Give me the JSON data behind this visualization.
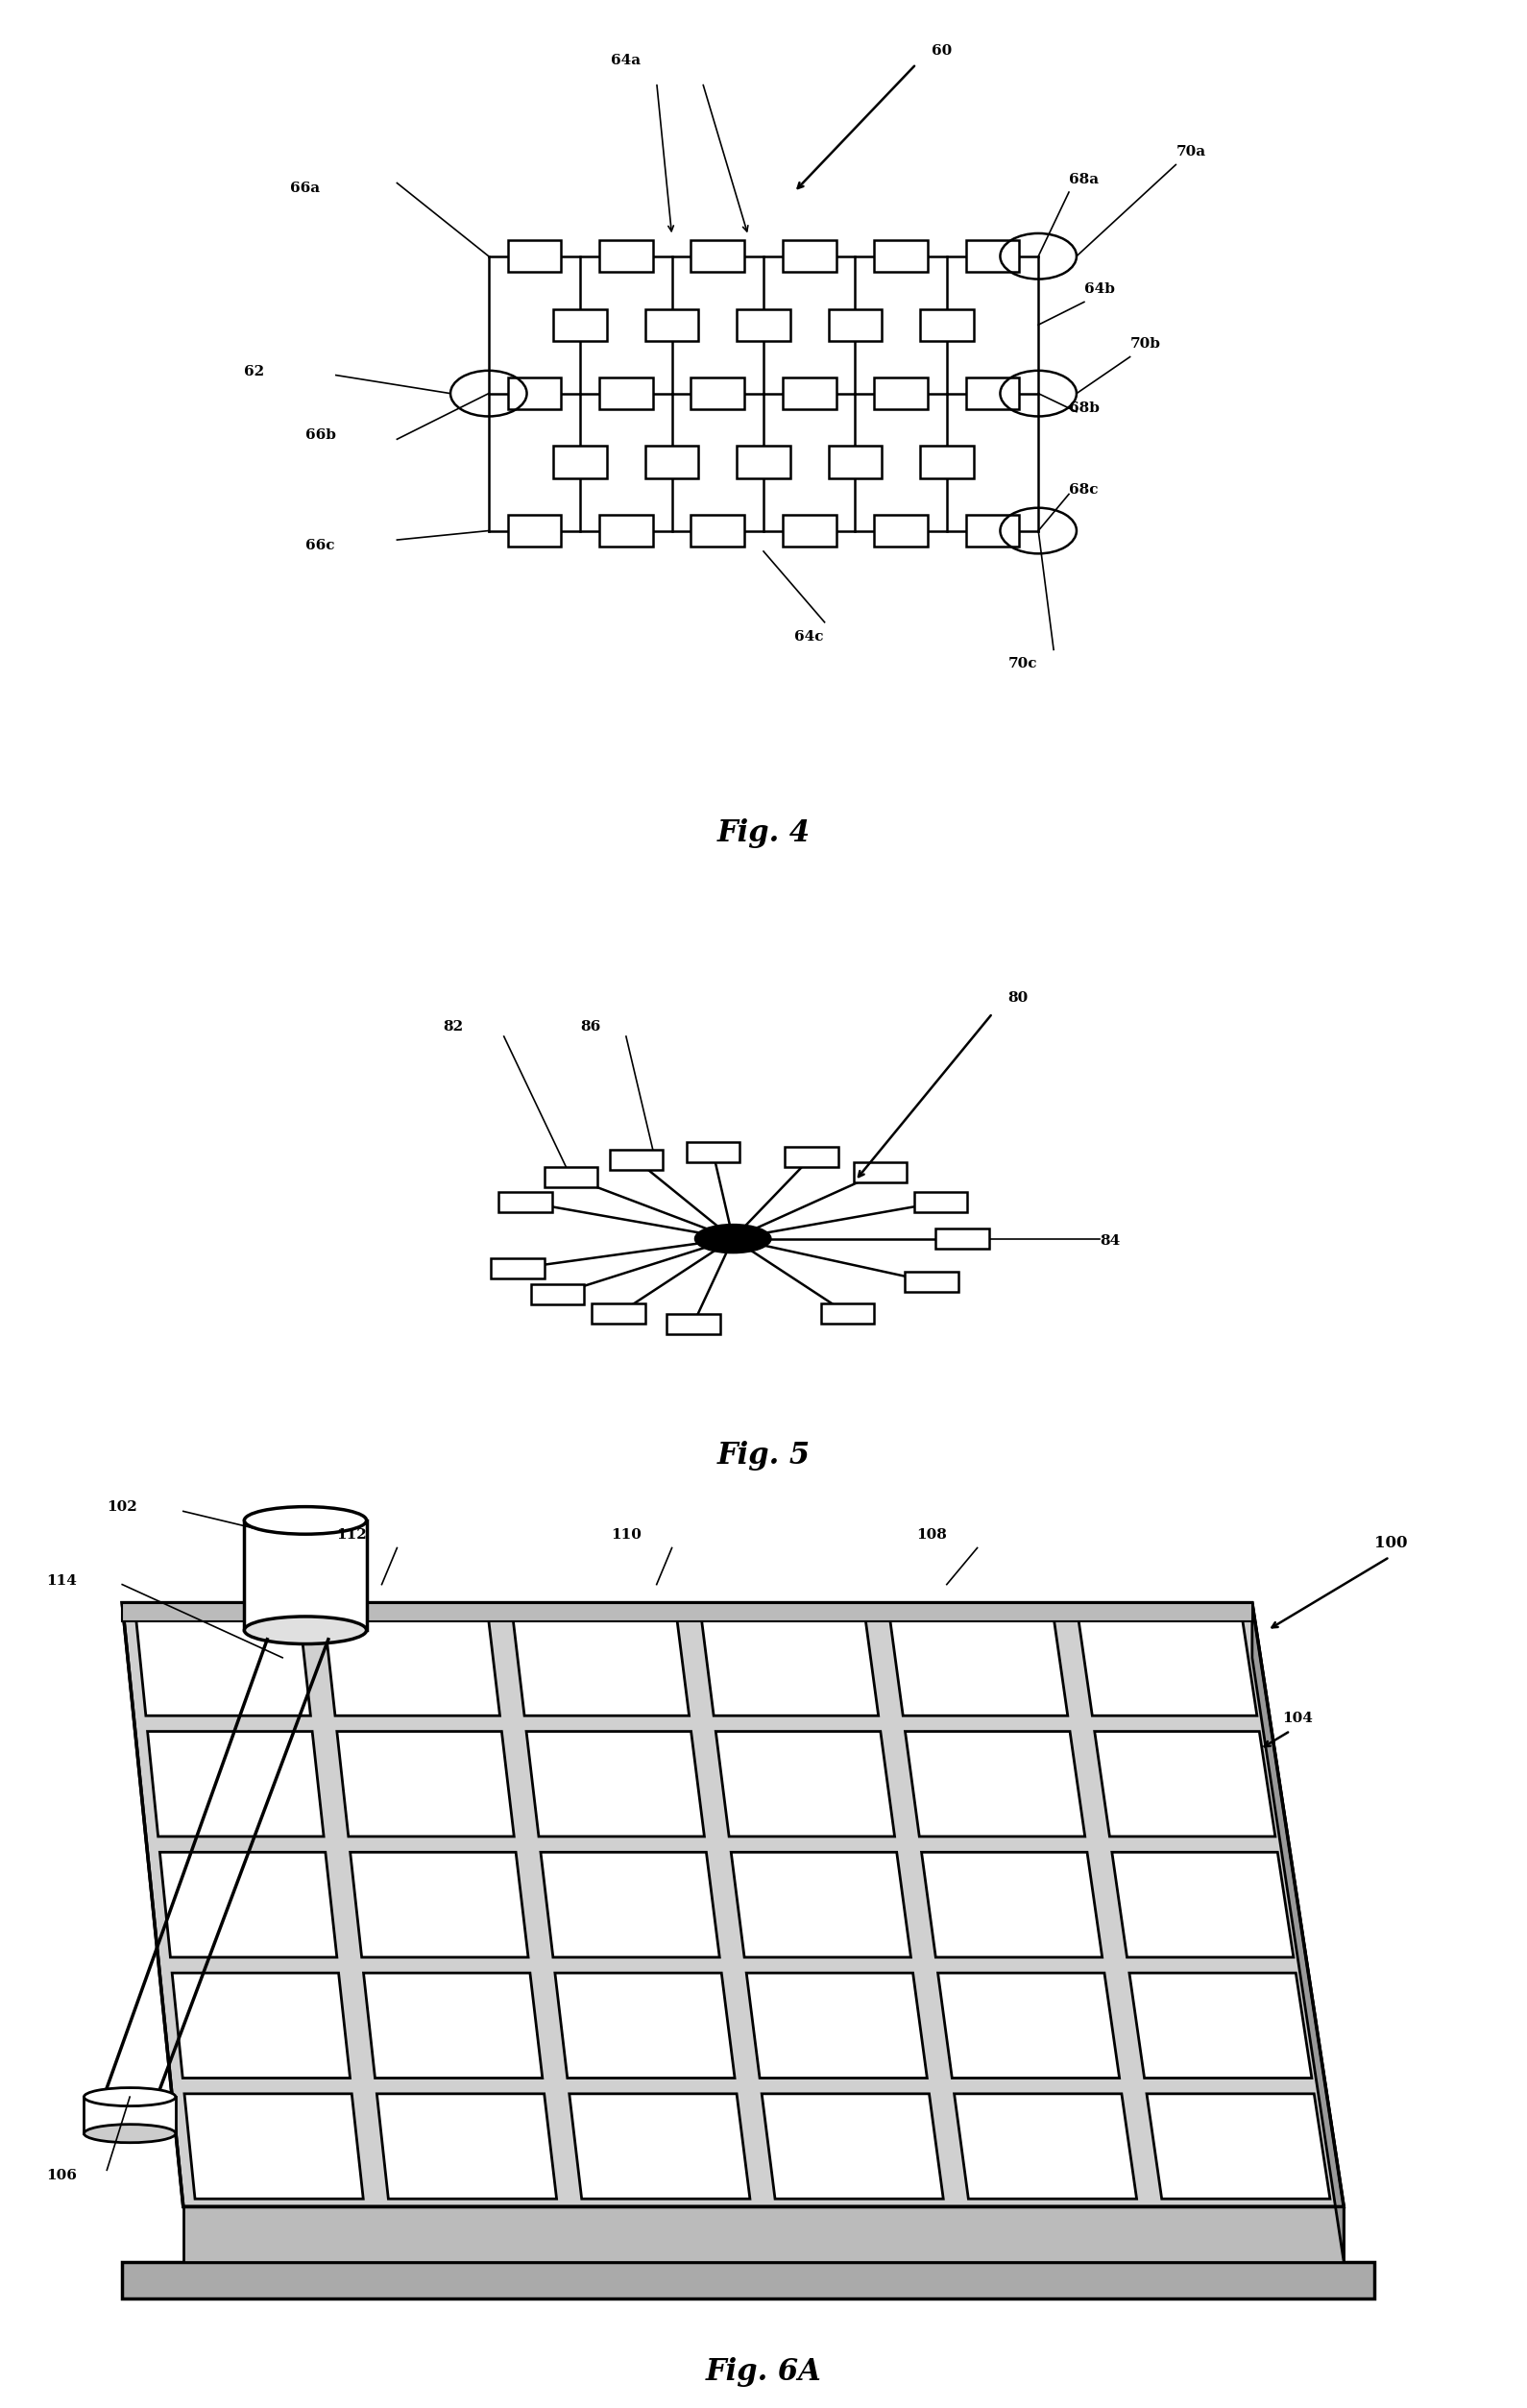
{
  "bg_color": "#ffffff",
  "fig4": {
    "label": "Fig. 4",
    "ref60": "60",
    "ref62": "62",
    "ref64a": "64a",
    "ref64b": "64b",
    "ref64c": "64c",
    "ref66a": "66a",
    "ref66b": "66b",
    "ref66c": "66c",
    "ref68a": "68a",
    "ref68b": "68b",
    "ref68c": "68c",
    "ref70a": "70a",
    "ref70b": "70b",
    "ref70c": "70c"
  },
  "fig5": {
    "label": "Fig. 5",
    "ref80": "80",
    "ref82": "82",
    "ref84": "84",
    "ref86": "86"
  },
  "fig6a": {
    "label": "Fig. 6A",
    "ref100": "100",
    "ref102": "102",
    "ref104": "104",
    "ref106": "106",
    "ref108": "108",
    "ref110": "110",
    "ref112": "112",
    "ref114": "114"
  }
}
